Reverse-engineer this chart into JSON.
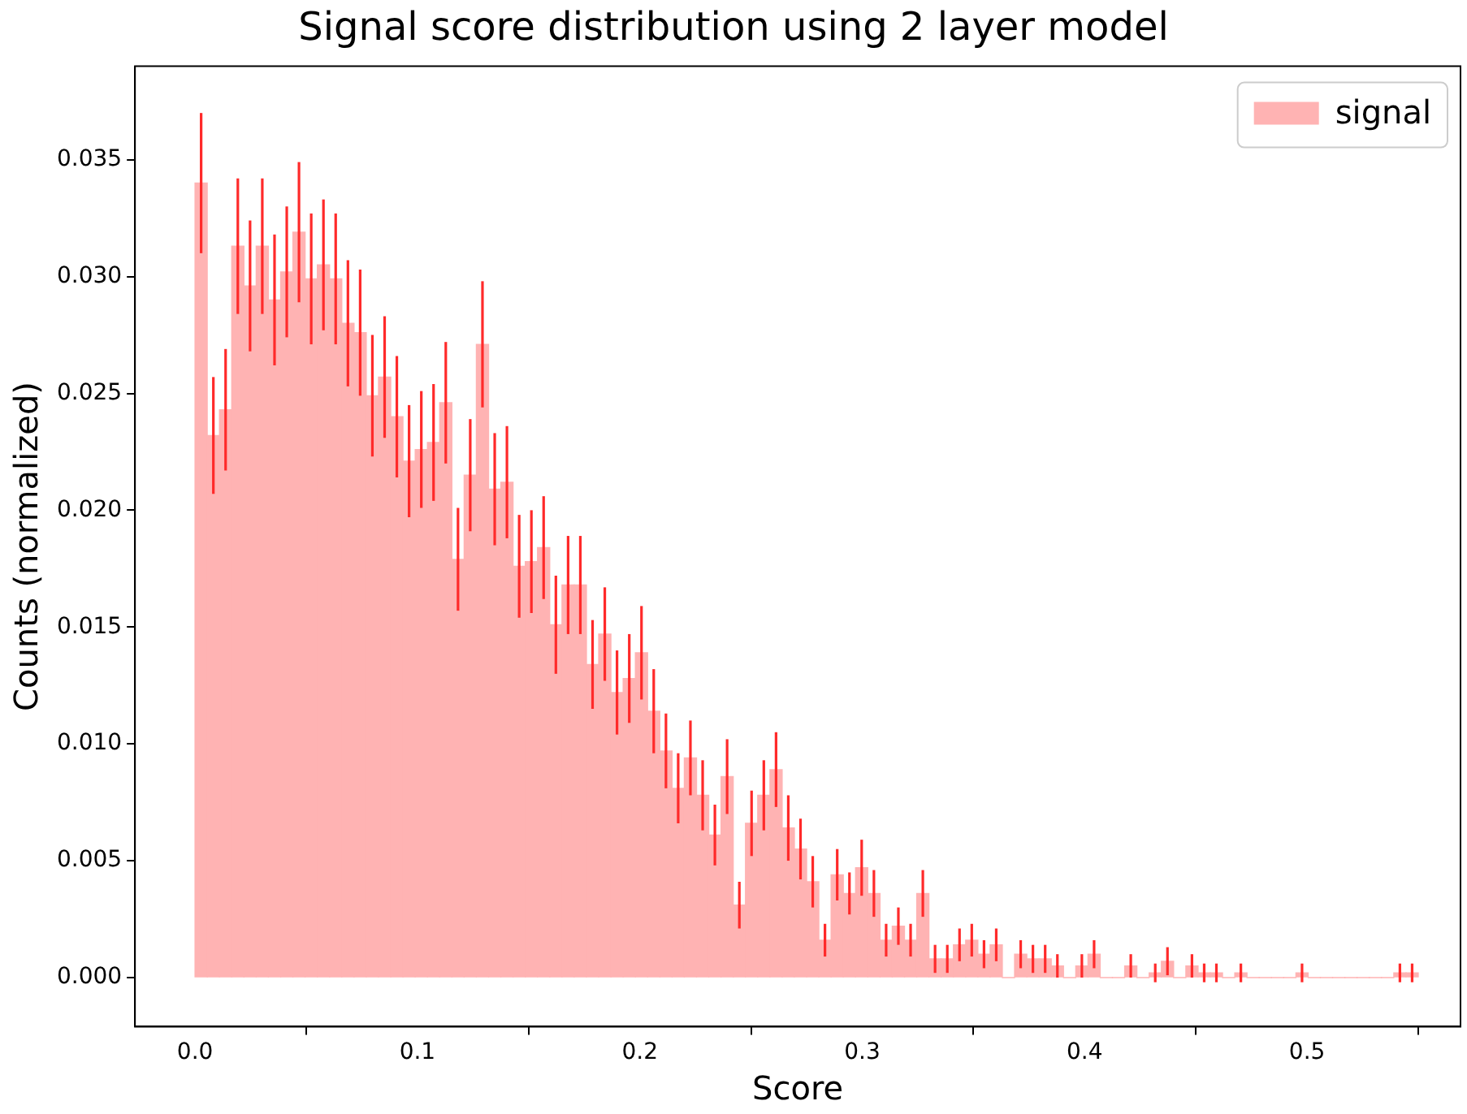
{
  "chart_data": {
    "type": "histogram",
    "title": "Signal score distribution using 2 layer model",
    "xlabel": "Score",
    "ylabel": "Counts (normalized)",
    "bins": [
      0,
      0.0055,
      0.011,
      0.0165,
      0.022,
      0.0275,
      0.033,
      0.0385,
      0.044,
      0.0495,
      0.055,
      0.0605,
      0.066,
      0.0715,
      0.077,
      0.0825,
      0.088,
      0.0935,
      0.099,
      0.1045,
      0.11,
      0.1155,
      0.121,
      0.1265,
      0.132,
      0.1375,
      0.143,
      0.1485,
      0.154,
      0.1595,
      0.165,
      0.1705,
      0.176,
      0.1815,
      0.187,
      0.1925,
      0.198,
      0.2035,
      0.209,
      0.2145,
      0.22,
      0.2255,
      0.231,
      0.2365,
      0.242,
      0.2475,
      0.253,
      0.2585,
      0.264,
      0.2695,
      0.275,
      0.2805,
      0.286,
      0.2915,
      0.297,
      0.3025,
      0.308,
      0.3135,
      0.319,
      0.3245,
      0.33,
      0.3355,
      0.341,
      0.3465,
      0.352,
      0.3575,
      0.363,
      0.3685,
      0.374,
      0.3795,
      0.385,
      0.3905,
      0.396,
      0.4015,
      0.407,
      0.4125,
      0.418,
      0.4235,
      0.429,
      0.4345,
      0.44,
      0.4455,
      0.451,
      0.4565,
      0.462,
      0.4675,
      0.473,
      0.4785,
      0.484,
      0.4895,
      0.495,
      0.5005,
      0.506,
      0.5115,
      0.517,
      0.5225,
      0.528,
      0.5335,
      0.539,
      0.5445,
      0.55
    ],
    "series": [
      {
        "name": "signal",
        "color": "#ffb3b3",
        "values": [
          0.034,
          0.0232,
          0.0243,
          0.0313,
          0.0296,
          0.0313,
          0.029,
          0.0302,
          0.0319,
          0.0299,
          0.0305,
          0.0299,
          0.028,
          0.0276,
          0.0249,
          0.0257,
          0.024,
          0.0221,
          0.0226,
          0.0229,
          0.0246,
          0.0179,
          0.0215,
          0.0271,
          0.0209,
          0.0212,
          0.0176,
          0.0178,
          0.0184,
          0.0151,
          0.0168,
          0.0168,
          0.0134,
          0.0147,
          0.0122,
          0.0128,
          0.0139,
          0.0114,
          0.0097,
          0.0081,
          0.0094,
          0.0078,
          0.0061,
          0.0086,
          0.0031,
          0.0066,
          0.0078,
          0.0089,
          0.0064,
          0.0055,
          0.0041,
          0.0016,
          0.0044,
          0.0036,
          0.0047,
          0.0036,
          0.0016,
          0.0022,
          0.0016,
          0.0036,
          0.0008,
          0.0008,
          0.0014,
          0.0016,
          0.001,
          0.0014,
          0,
          0.001,
          0.0008,
          0.0008,
          0.0005,
          0,
          0.0005,
          0.001,
          0,
          0,
          0.0005,
          0,
          0.0002,
          0.0007,
          0,
          0.0005,
          0.0002,
          0.0002,
          0,
          0.0002,
          0,
          0,
          0,
          0,
          0.0002,
          0,
          0,
          0,
          0,
          0,
          0,
          0,
          0.0002,
          0.0002
        ],
        "errors": [
          0.003,
          0.0025,
          0.0026,
          0.0029,
          0.0028,
          0.0029,
          0.0028,
          0.0028,
          0.003,
          0.0028,
          0.0028,
          0.0028,
          0.0027,
          0.0027,
          0.0026,
          0.0026,
          0.0026,
          0.0024,
          0.0025,
          0.0025,
          0.0026,
          0.0022,
          0.0024,
          0.0027,
          0.0024,
          0.0024,
          0.0022,
          0.0022,
          0.0022,
          0.0021,
          0.0021,
          0.0021,
          0.0019,
          0.002,
          0.0018,
          0.0019,
          0.002,
          0.0018,
          0.0016,
          0.0015,
          0.0016,
          0.0015,
          0.0013,
          0.0016,
          0.001,
          0.0014,
          0.0015,
          0.0016,
          0.0014,
          0.0013,
          0.0011,
          0.0007,
          0.0011,
          0.0009,
          0.0012,
          0.001,
          0.0007,
          0.0008,
          0.0007,
          0.001,
          0.0006,
          0.0006,
          0.0007,
          0.0007,
          0.0006,
          0.0007,
          null,
          0.0006,
          0.0006,
          0.0006,
          0.0005,
          null,
          0.0005,
          0.0006,
          null,
          null,
          0.0005,
          null,
          0.0004,
          0.0006,
          null,
          0.0005,
          0.0004,
          0.0004,
          null,
          0.0004,
          null,
          null,
          null,
          null,
          0.0004,
          null,
          null,
          null,
          null,
          null,
          null,
          null,
          0.0004,
          0.0004
        ]
      }
    ],
    "xlim": [
      -0.027,
      0.569
    ],
    "ylim": [
      -0.0021,
      0.039
    ],
    "xticks": [
      {
        "value": 0,
        "label": "0.0"
      },
      0.1,
      0.2,
      0.3,
      0.4,
      0.5
    ],
    "yticks": [
      {
        "value": 0,
        "label": "0.000"
      },
      {
        "value": 0.005,
        "label": "0.005"
      },
      {
        "value": 0.01,
        "label": "0.010"
      },
      {
        "value": 0.015,
        "label": "0.015"
      },
      {
        "value": 0.02,
        "label": "0.020"
      },
      {
        "value": 0.025,
        "label": "0.025"
      },
      {
        "value": 0.03,
        "label": "0.030"
      },
      {
        "value": 0.035,
        "label": "0.035"
      }
    ],
    "grid": false,
    "legend": "top right"
  }
}
